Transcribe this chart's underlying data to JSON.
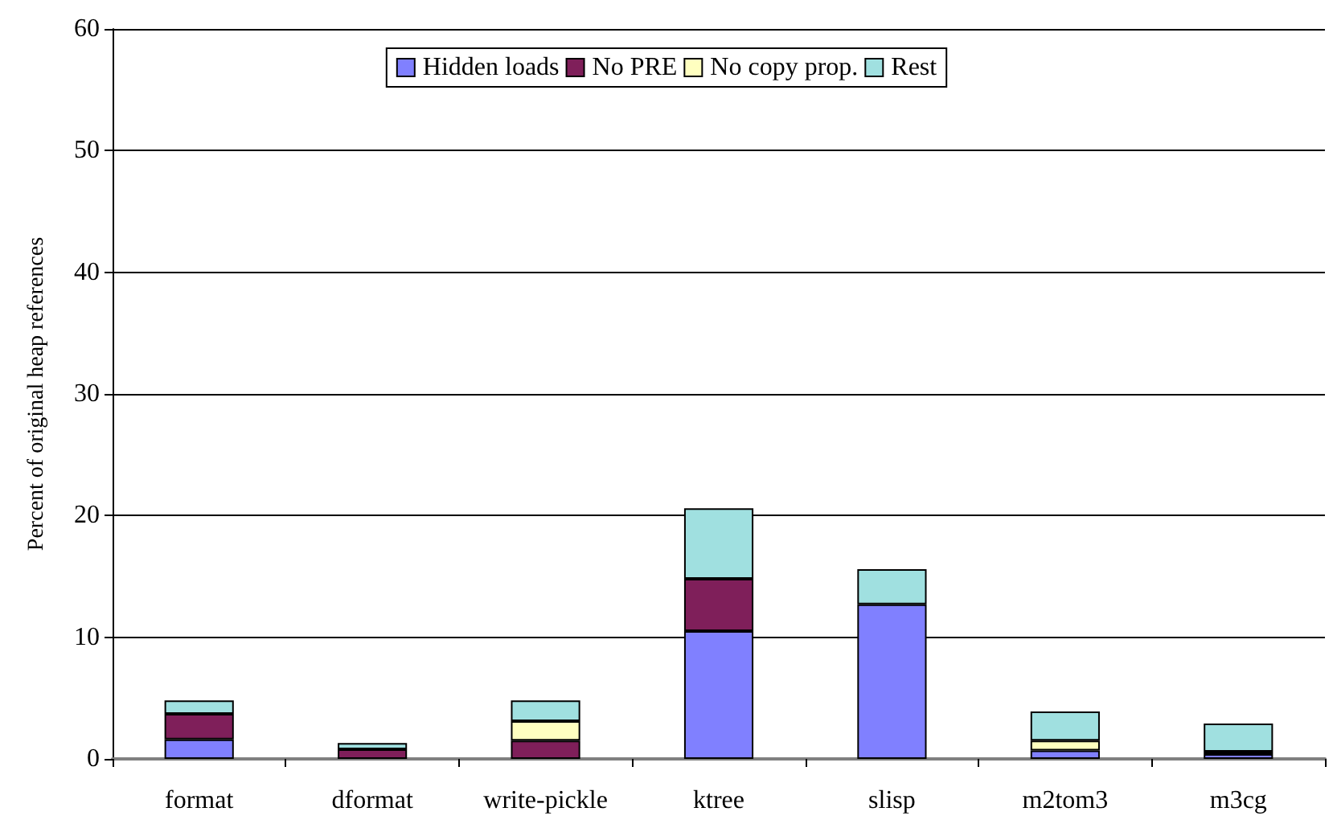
{
  "chart_data": {
    "type": "bar",
    "stacked": true,
    "ylabel": "Percent of original heap references",
    "categories": [
      "format",
      "dformat",
      "write-pickle",
      "ktree",
      "slisp",
      "m2tom3",
      "m3cg"
    ],
    "series": [
      {
        "name": "Hidden loads",
        "color": "#8080ff",
        "values": [
          1.6,
          null,
          null,
          10.5,
          12.7,
          0.7,
          0.4
        ]
      },
      {
        "name": "No PRE",
        "color": "#7f1f5a",
        "values": [
          2.1,
          0.8,
          1.5,
          4.3,
          null,
          null,
          0.2
        ]
      },
      {
        "name": "No copy prop.",
        "color": "#ffffc0",
        "values": [
          null,
          null,
          1.6,
          null,
          null,
          0.8,
          null
        ]
      },
      {
        "name": "Rest",
        "color": "#a0e0e0",
        "values": [
          1.1,
          0.5,
          1.7,
          5.8,
          2.9,
          2.4,
          2.3
        ]
      }
    ],
    "ylim": [
      0,
      60
    ],
    "yticks": [
      0,
      10,
      20,
      30,
      40,
      50,
      60
    ],
    "grid": "y",
    "legend": "top"
  }
}
